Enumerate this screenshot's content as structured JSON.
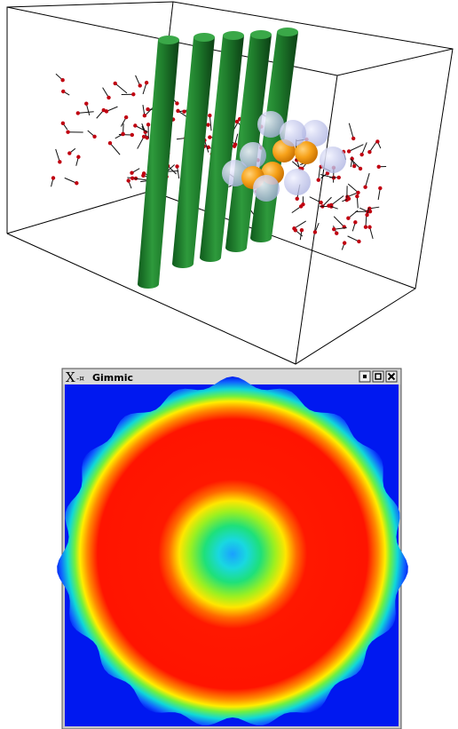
{
  "window": {
    "title": "Gimmic"
  }
}
